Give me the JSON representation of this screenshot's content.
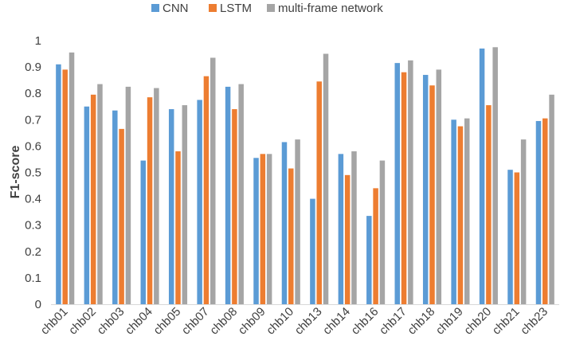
{
  "chart_data": {
    "type": "bar",
    "title": "",
    "xlabel": "",
    "ylabel": "F1-score",
    "ylim": [
      0,
      1
    ],
    "yticks": [
      "0",
      "0.1",
      "0.2",
      "0.3",
      "0.4",
      "0.5",
      "0.6",
      "0.7",
      "0.8",
      "0.9",
      "1"
    ],
    "grid": false,
    "legend": "top-center",
    "categories": [
      "chb01",
      "chb02",
      "chb03",
      "chb04",
      "chb05",
      "chb07",
      "chb08",
      "chb09",
      "chb10",
      "chb13",
      "chb14",
      "chb16",
      "chb17",
      "chb18",
      "chb19",
      "chb20",
      "chb21",
      "chb23"
    ],
    "series": [
      {
        "name": "CNN",
        "color": "#5b9bd5",
        "values": [
          0.91,
          0.75,
          0.735,
          0.545,
          0.74,
          0.775,
          0.825,
          0.555,
          0.615,
          0.4,
          0.57,
          0.335,
          0.915,
          0.87,
          0.7,
          0.97,
          0.51,
          0.695
        ]
      },
      {
        "name": "LSTM",
        "color": "#ed7d31",
        "values": [
          0.89,
          0.795,
          0.665,
          0.785,
          0.58,
          0.865,
          0.74,
          0.57,
          0.515,
          0.845,
          0.49,
          0.44,
          0.88,
          0.83,
          0.675,
          0.755,
          0.5,
          0.705
        ]
      },
      {
        "name": "multi-frame network",
        "color": "#a5a5a5",
        "values": [
          0.955,
          0.835,
          0.825,
          0.82,
          0.755,
          0.935,
          0.835,
          0.57,
          0.625,
          0.95,
          0.58,
          0.545,
          0.925,
          0.89,
          0.705,
          0.975,
          0.625,
          0.795
        ]
      }
    ]
  }
}
